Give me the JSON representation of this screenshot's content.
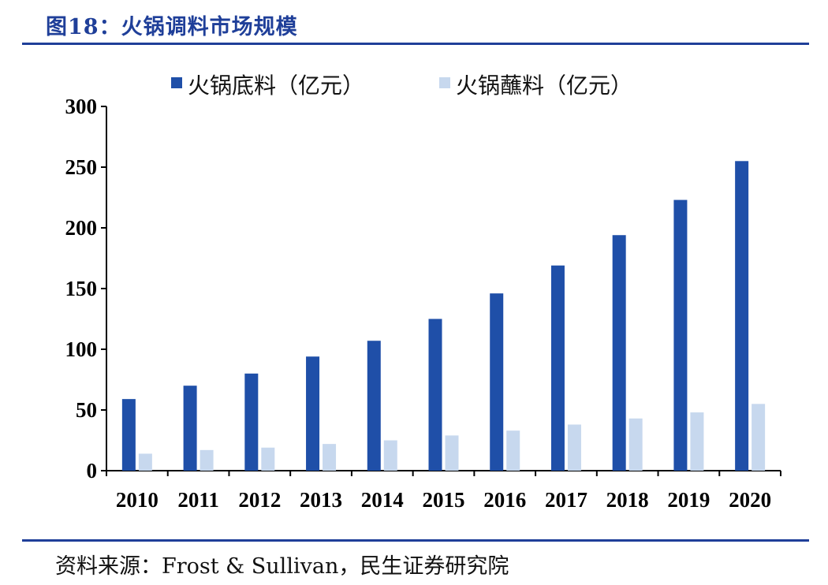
{
  "figure_title": "图18：火锅调料市场规模",
  "source_note": "资料来源：Frost & Sullivan，民生证券研究院",
  "colors": {
    "series_base": "#1f4fa8",
    "series_dip": "#c7d8ee",
    "accent": "#1f3f99"
  },
  "chart_data": {
    "type": "bar",
    "title": "图18：火锅调料市场规模",
    "xlabel": "",
    "ylabel": "",
    "categories": [
      "2010",
      "2011",
      "2012",
      "2013",
      "2014",
      "2015",
      "2016",
      "2017",
      "2018",
      "2019",
      "2020"
    ],
    "series": [
      {
        "name": "火锅底料（亿元）",
        "values": [
          59,
          70,
          80,
          94,
          107,
          125,
          146,
          169,
          194,
          223,
          255
        ]
      },
      {
        "name": "火锅蘸料（亿元）",
        "values": [
          14,
          17,
          19,
          22,
          25,
          29,
          33,
          38,
          43,
          48,
          55
        ]
      }
    ],
    "ylim": [
      0,
      300
    ],
    "yticks": [
      "0",
      "50",
      "100",
      "150",
      "200",
      "250",
      "300"
    ],
    "grid": false,
    "legend_position": "top"
  }
}
